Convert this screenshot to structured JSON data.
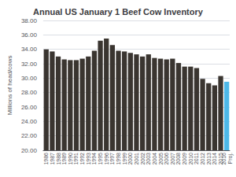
{
  "chart_data": {
    "type": "bar",
    "title": "Annual US January 1 Beef Cow Inventory",
    "ylabel": "Millions of head/cows",
    "categories": [
      "1986",
      "1987",
      "1988",
      "1989",
      "1990",
      "1991",
      "1992",
      "1993",
      "1994",
      "1995",
      "1996",
      "1997",
      "1998",
      "1999",
      "2000",
      "2001",
      "2002",
      "2003",
      "2004",
      "2005",
      "2006",
      "2007",
      "2008",
      "2009",
      "2010",
      "2011",
      "2012",
      "2013",
      "2014",
      "2015",
      "2016\nProj."
    ],
    "values": [
      34.0,
      33.7,
      33.0,
      32.6,
      32.5,
      32.5,
      32.7,
      33.0,
      33.8,
      35.2,
      35.5,
      34.6,
      33.8,
      33.7,
      33.5,
      33.3,
      33.0,
      33.3,
      32.8,
      32.7,
      32.6,
      32.7,
      32.1,
      31.6,
      31.6,
      31.4,
      29.9,
      29.3,
      29.0,
      30.3,
      29.5
    ],
    "colors": [
      "#3a3530",
      "#3a3530",
      "#3a3530",
      "#3a3530",
      "#3a3530",
      "#3a3530",
      "#3a3530",
      "#3a3530",
      "#3a3530",
      "#3a3530",
      "#3a3530",
      "#3a3530",
      "#3a3530",
      "#3a3530",
      "#3a3530",
      "#3a3530",
      "#3a3530",
      "#3a3530",
      "#3a3530",
      "#3a3530",
      "#3a3530",
      "#3a3530",
      "#3a3530",
      "#3a3530",
      "#3a3530",
      "#3a3530",
      "#3a3530",
      "#3a3530",
      "#3a3530",
      "#3a3530",
      "#4db8e8"
    ],
    "ylim": [
      20,
      38
    ],
    "yticks": [
      {
        "value": 20,
        "label": "20.00"
      },
      {
        "value": 22,
        "label": "22.00"
      },
      {
        "value": 24,
        "label": "24.00"
      },
      {
        "value": 26,
        "label": "26.00"
      },
      {
        "value": 28,
        "label": "28.00"
      },
      {
        "value": 30,
        "label": "30.00"
      },
      {
        "value": 32,
        "label": "32.00"
      },
      {
        "value": 34,
        "label": "34.00"
      },
      {
        "value": 36,
        "label": "36.00"
      },
      {
        "value": 38,
        "label": "38.00"
      }
    ],
    "grid": true
  }
}
